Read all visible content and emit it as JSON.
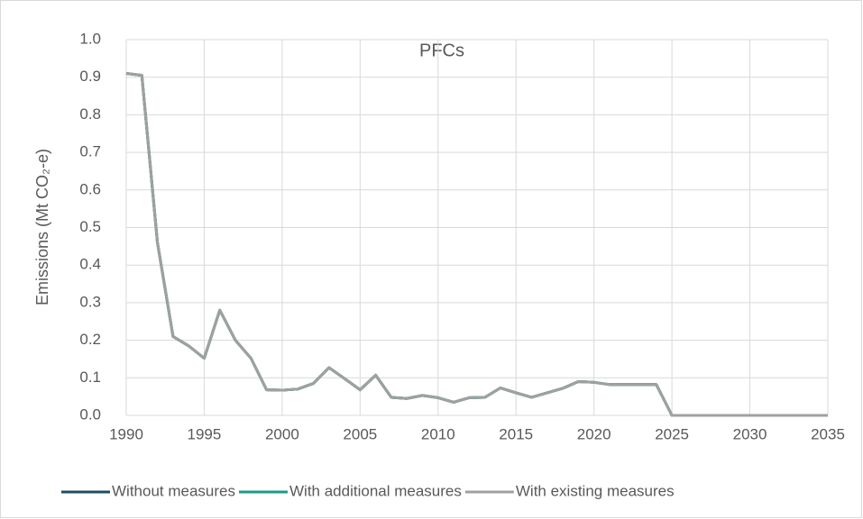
{
  "chart_data": {
    "type": "line",
    "title": "PFCs",
    "y_label": "Emissions (Mt CO₂-e)",
    "x": [
      1990,
      1991,
      1992,
      1993,
      1994,
      1995,
      1996,
      1997,
      1998,
      1999,
      2000,
      2001,
      2002,
      2003,
      2004,
      2005,
      2006,
      2007,
      2008,
      2009,
      2010,
      2011,
      2012,
      2013,
      2014,
      2015,
      2016,
      2017,
      2018,
      2019,
      2020,
      2021,
      2022,
      2023,
      2024,
      2025,
      2026,
      2027,
      2028,
      2029,
      2030,
      2031,
      2032,
      2033,
      2034,
      2035
    ],
    "series": [
      {
        "name": "Without measures",
        "color": "#1f4e5f",
        "values": [
          0.91,
          0.905,
          0.46,
          0.21,
          0.185,
          0.152,
          0.28,
          0.2,
          0.152,
          0.068,
          0.067,
          0.07,
          0.085,
          0.127,
          0.098,
          0.068,
          0.107,
          0.048,
          0.045,
          0.053,
          0.047,
          0.035,
          0.047,
          0.048,
          0.073,
          0.06,
          0.048,
          0.06,
          0.072,
          0.09,
          0.088,
          0.082,
          0.082,
          0.082,
          0.082,
          0,
          0,
          0,
          0,
          0,
          0,
          0,
          0,
          0,
          0,
          0
        ]
      },
      {
        "name": "With additional measures",
        "color": "#1a9a8a",
        "values": [
          0.91,
          0.905,
          0.46,
          0.21,
          0.185,
          0.152,
          0.28,
          0.2,
          0.152,
          0.068,
          0.067,
          0.07,
          0.085,
          0.127,
          0.098,
          0.068,
          0.107,
          0.048,
          0.045,
          0.053,
          0.047,
          0.035,
          0.047,
          0.048,
          0.073,
          0.06,
          0.048,
          0.06,
          0.072,
          0.09,
          0.088,
          0.082,
          0.082,
          0.082,
          0.082,
          0,
          0,
          0,
          0,
          0,
          0,
          0,
          0,
          0,
          0,
          0
        ]
      },
      {
        "name": "With existing measures",
        "color": "#a0a0a0",
        "values": [
          0.91,
          0.905,
          0.46,
          0.21,
          0.185,
          0.152,
          0.28,
          0.2,
          0.152,
          0.068,
          0.067,
          0.07,
          0.085,
          0.127,
          0.098,
          0.068,
          0.107,
          0.048,
          0.045,
          0.053,
          0.047,
          0.035,
          0.047,
          0.048,
          0.073,
          0.06,
          0.048,
          0.06,
          0.072,
          0.09,
          0.088,
          0.082,
          0.082,
          0.082,
          0.082,
          0,
          0,
          0,
          0,
          0,
          0,
          0,
          0,
          0,
          0,
          0
        ]
      }
    ],
    "xlim": [
      1990,
      2035
    ],
    "xticks": [
      1990,
      1995,
      2000,
      2005,
      2010,
      2015,
      2020,
      2025,
      2030,
      2035
    ],
    "ylim": [
      0,
      1
    ],
    "yticks": [
      {
        "value": 0,
        "label": "0.0"
      },
      0.1,
      0.2,
      0.3,
      0.4,
      0.5,
      0.6,
      0.7,
      0.8,
      0.9,
      {
        "value": 1,
        "label": "1.0"
      }
    ],
    "grid": true,
    "legend": "bottom"
  }
}
